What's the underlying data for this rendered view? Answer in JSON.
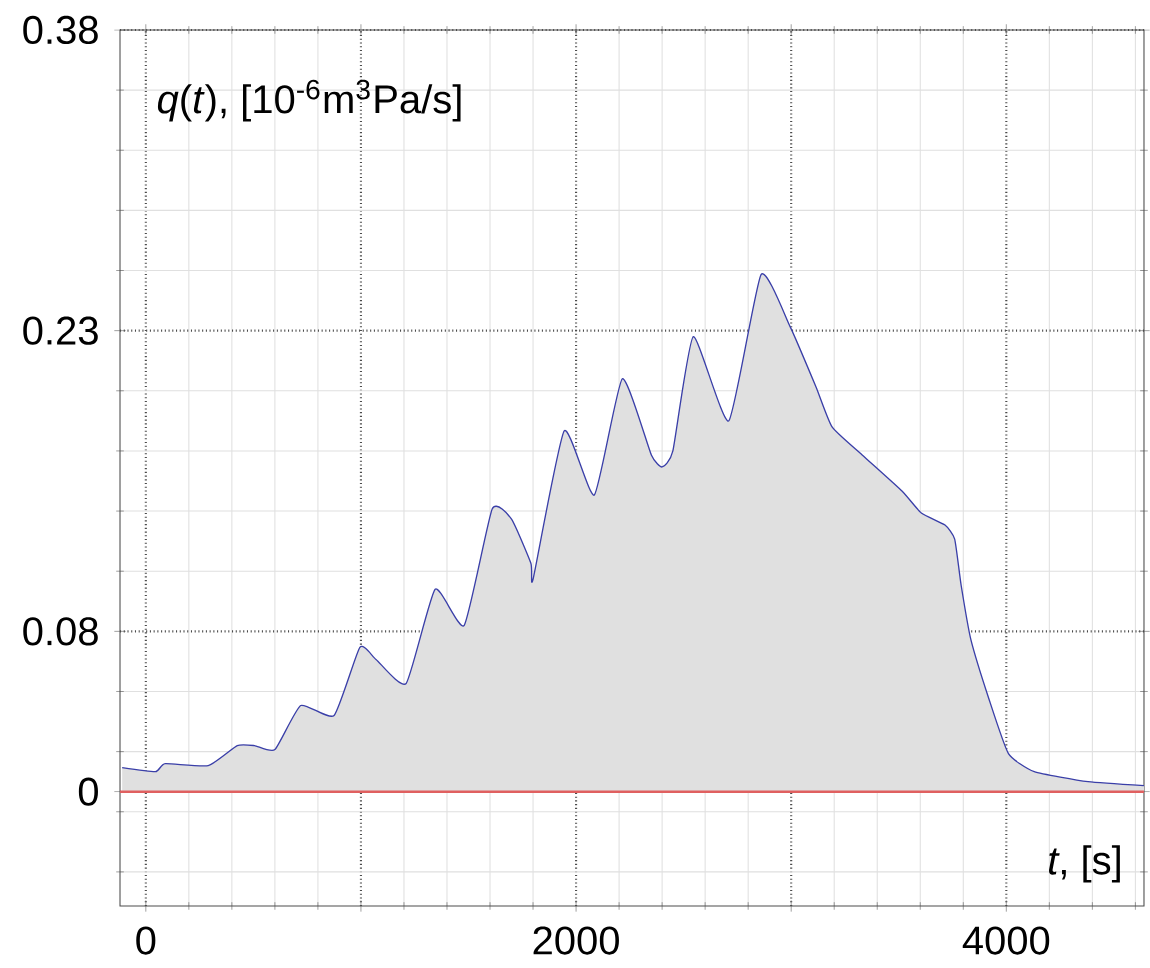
{
  "chart_data": {
    "type": "area",
    "xlabel": "*t*, [s]",
    "ylabel": "*q*(*t*), [10$^{-6}$m$^{3}$Pa/s]",
    "xlim": [
      -120,
      4640
    ],
    "ylim": [
      -0.057,
      0.38
    ],
    "xticks": [
      0,
      {
        "value": 1000,
        "label": null
      },
      2000,
      {
        "value": 3000,
        "label": null
      },
      4000
    ],
    "yticks": [
      0,
      0.08,
      0.23,
      0.38
    ],
    "grid": true,
    "ref_lines": [
      {
        "axis": "y",
        "value": 0,
        "color": "#e06060"
      }
    ],
    "series": [
      {
        "color": "#3a3fa8",
        "x": [
          -110,
          45,
          90,
          290,
          425,
          505,
          600,
          720,
          875,
          995,
          1070,
          1210,
          1345,
          1480,
          1610,
          1700,
          1790,
          1800,
          1945,
          2085,
          2215,
          2350,
          2400,
          2450,
          2545,
          2710,
          2860,
          2995,
          3115,
          3190,
          3330,
          3515,
          3605,
          3715,
          3760,
          3790,
          3835,
          3920,
          4010,
          4130,
          4380,
          4640
        ],
        "values": [
          0.012,
          0.01,
          0.014,
          0.013,
          0.023,
          0.023,
          0.021,
          0.043,
          0.038,
          0.072,
          0.066,
          0.054,
          0.101,
          0.083,
          0.141,
          0.136,
          0.114,
          0.106,
          0.18,
          0.148,
          0.206,
          0.168,
          0.162,
          0.17,
          0.227,
          0.185,
          0.258,
          0.232,
          0.202,
          0.182,
          0.168,
          0.15,
          0.139,
          0.133,
          0.126,
          0.103,
          0.076,
          0.046,
          0.019,
          0.01,
          0.005,
          0.003
        ]
      }
    ]
  }
}
